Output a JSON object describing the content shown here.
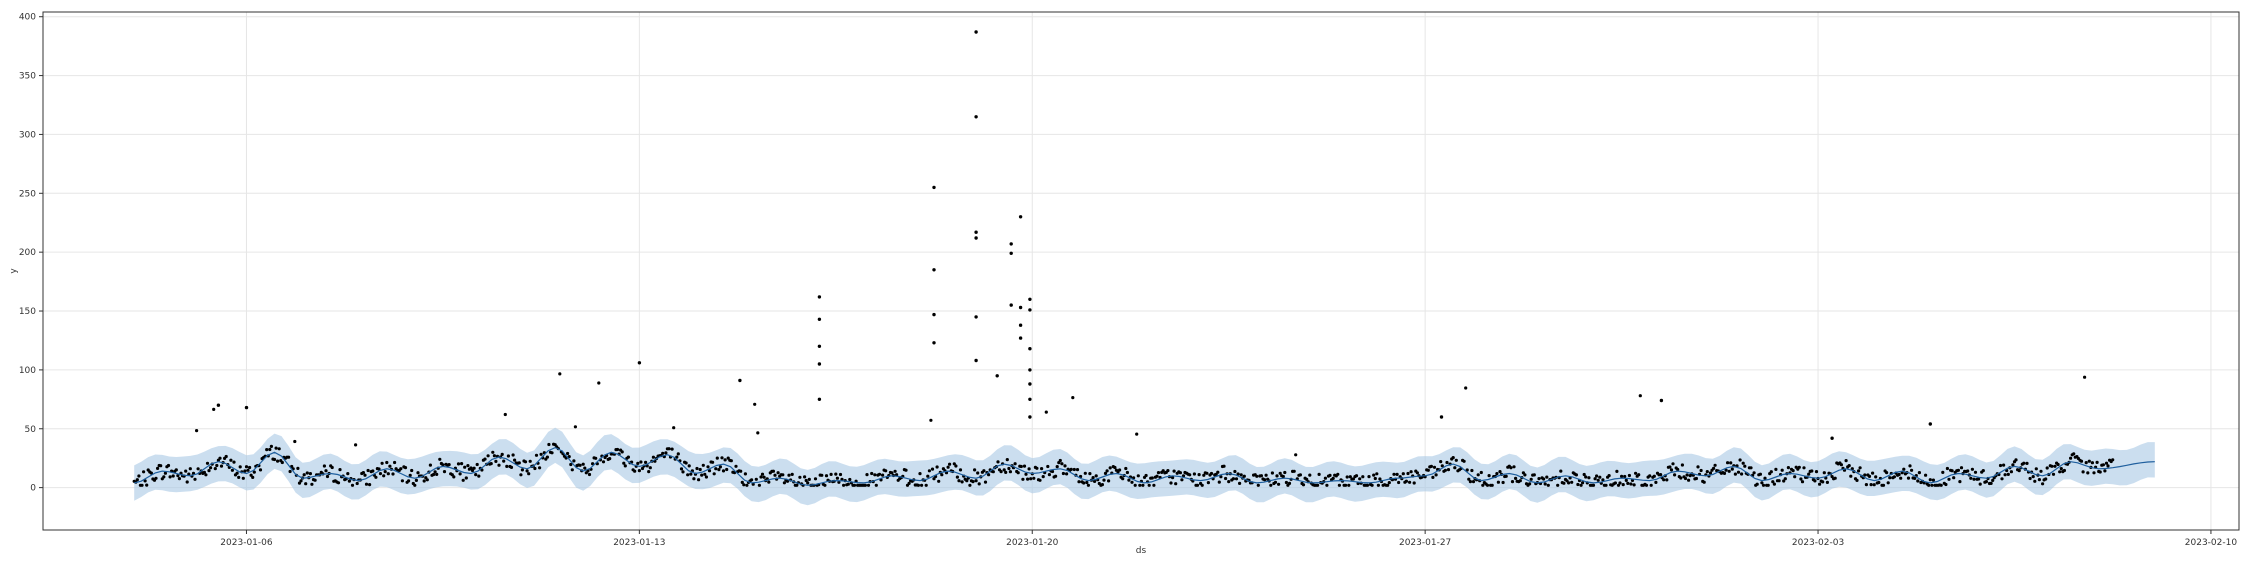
{
  "chart_data": {
    "type": "scatter",
    "xlabel": "ds",
    "ylabel": "y",
    "xlim": [
      "2023-01-02T09:00",
      "2023-02-10T12:00"
    ],
    "ylim": [
      -36,
      404
    ],
    "grid": true,
    "x_ticks": [
      "2023-01-06",
      "2023-01-13",
      "2023-01-20",
      "2023-01-27",
      "2023-02-03",
      "2023-02-10"
    ],
    "y_ticks": [
      0,
      50,
      100,
      150,
      200,
      250,
      300,
      350,
      400
    ],
    "colors": {
      "points": "#000000",
      "forecast_line": "#1f5f9e",
      "interval_fill": "#a9c8e4"
    },
    "observed_range": [
      "2023-01-04",
      "2023-02-08"
    ],
    "forecast_end": "2023-02-09",
    "interval_halfwidth": 15,
    "series": [
      {
        "kind": "forecast",
        "x": [
          "2023-01-04",
          "2023-01-04T12:00",
          "2023-01-05",
          "2023-01-05T12:00",
          "2023-01-06",
          "2023-01-06T12:00",
          "2023-01-07",
          "2023-01-07T12:00",
          "2023-01-08",
          "2023-01-08T12:00",
          "2023-01-09",
          "2023-01-09T12:00",
          "2023-01-10",
          "2023-01-10T12:00",
          "2023-01-11",
          "2023-01-11T12:00",
          "2023-01-12",
          "2023-01-12T12:00",
          "2023-01-13",
          "2023-01-13T12:00",
          "2023-01-14",
          "2023-01-14T12:00",
          "2023-01-15",
          "2023-01-15T12:00",
          "2023-01-16",
          "2023-01-16T12:00",
          "2023-01-17",
          "2023-01-17T12:00",
          "2023-01-18",
          "2023-01-18T12:00",
          "2023-01-19",
          "2023-01-19T12:00",
          "2023-01-20",
          "2023-01-20T12:00",
          "2023-01-21",
          "2023-01-21T12:00",
          "2023-01-22",
          "2023-01-22T12:00",
          "2023-01-23",
          "2023-01-23T12:00",
          "2023-01-24",
          "2023-01-24T12:00",
          "2023-01-25",
          "2023-01-25T12:00",
          "2023-01-26",
          "2023-01-26T12:00",
          "2023-01-27",
          "2023-01-27T12:00",
          "2023-01-28",
          "2023-01-28T12:00",
          "2023-01-29",
          "2023-01-29T12:00",
          "2023-01-30",
          "2023-01-30T12:00",
          "2023-01-31",
          "2023-01-31T12:00",
          "2023-02-01",
          "2023-02-01T12:00",
          "2023-02-02",
          "2023-02-02T12:00",
          "2023-02-03",
          "2023-02-03T12:00",
          "2023-02-04",
          "2023-02-04T12:00",
          "2023-02-05",
          "2023-02-05T12:00",
          "2023-02-06",
          "2023-02-06T12:00",
          "2023-02-07",
          "2023-02-07T12:00",
          "2023-02-08",
          "2023-02-09"
        ],
        "y": [
          4,
          14,
          10,
          22,
          12,
          30,
          8,
          12,
          6,
          16,
          8,
          18,
          12,
          26,
          16,
          34,
          14,
          30,
          18,
          28,
          12,
          20,
          4,
          8,
          2,
          6,
          4,
          10,
          6,
          14,
          8,
          20,
          12,
          16,
          6,
          12,
          4,
          10,
          6,
          12,
          4,
          8,
          4,
          6,
          4,
          8,
          10,
          20,
          6,
          12,
          4,
          10,
          4,
          8,
          6,
          14,
          10,
          18,
          6,
          12,
          8,
          16,
          6,
          14,
          4,
          12,
          8,
          18,
          10,
          22,
          16,
          22
        ]
      }
    ]
  }
}
